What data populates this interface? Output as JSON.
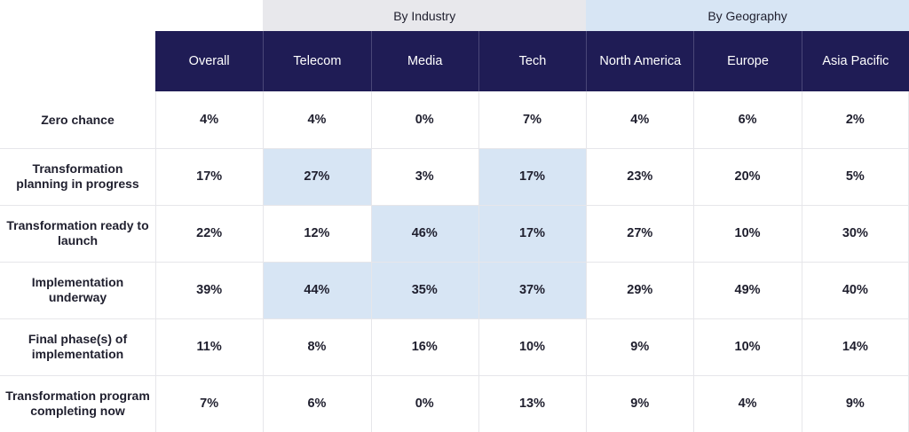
{
  "chart_data": {
    "type": "table",
    "groups": [
      {
        "label": "",
        "span": 1
      },
      {
        "label": "By Industry",
        "span": 3,
        "color": "#e8e8ec"
      },
      {
        "label": "By Geography",
        "span": 3,
        "color": "#d7e5f4"
      }
    ],
    "columns": [
      "Overall",
      "Telecom",
      "Media",
      "Tech",
      "North America",
      "Europe",
      "Asia Pacific"
    ],
    "rows": [
      {
        "label": "Zero chance",
        "values": [
          "4%",
          "4%",
          "0%",
          "7%",
          "4%",
          "6%",
          "2%"
        ],
        "highlight": [
          false,
          false,
          false,
          false,
          false,
          false,
          false
        ]
      },
      {
        "label": "Transformation planning in progress",
        "values": [
          "17%",
          "27%",
          "3%",
          "17%",
          "23%",
          "20%",
          "5%"
        ],
        "highlight": [
          false,
          true,
          false,
          true,
          false,
          false,
          false
        ]
      },
      {
        "label": "Transformation ready to launch",
        "values": [
          "22%",
          "12%",
          "46%",
          "17%",
          "27%",
          "10%",
          "30%"
        ],
        "highlight": [
          false,
          false,
          true,
          true,
          false,
          false,
          false
        ]
      },
      {
        "label": "Implementation underway",
        "values": [
          "39%",
          "44%",
          "35%",
          "37%",
          "29%",
          "49%",
          "40%"
        ],
        "highlight": [
          false,
          true,
          true,
          true,
          false,
          false,
          false
        ]
      },
      {
        "label": "Final phase(s) of implementation",
        "values": [
          "11%",
          "8%",
          "16%",
          "10%",
          "9%",
          "10%",
          "14%"
        ],
        "highlight": [
          false,
          false,
          false,
          false,
          false,
          false,
          false
        ]
      },
      {
        "label": "Transformation program completing now",
        "values": [
          "7%",
          "6%",
          "0%",
          "13%",
          "9%",
          "4%",
          "9%"
        ],
        "highlight": [
          false,
          false,
          false,
          false,
          false,
          false,
          false
        ]
      }
    ],
    "colors": {
      "header_bg": "#1f1c55",
      "highlight": "#d7e5f4",
      "industry_band": "#e8e8ec",
      "geography_band": "#d7e5f4"
    }
  }
}
